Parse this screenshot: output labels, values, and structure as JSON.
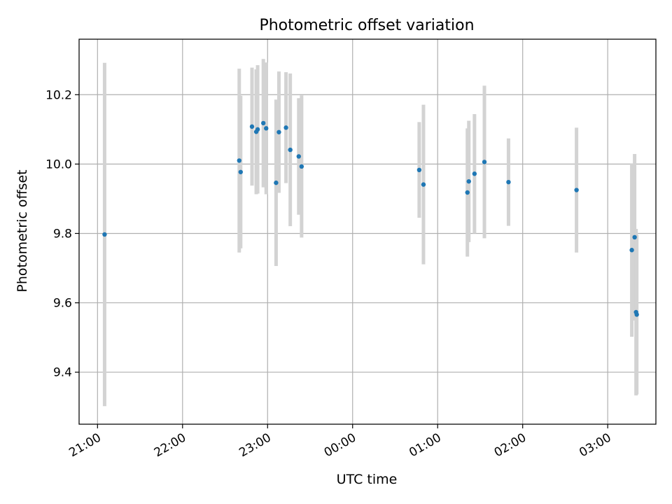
{
  "chart_data": {
    "type": "scatter",
    "title": "Photometric offset variation",
    "xlabel": "UTC time",
    "ylabel": "Photometric offset",
    "grid": true,
    "x_unit": "minutes",
    "x_ticks": [
      {
        "value": 0,
        "label": "21:00"
      },
      {
        "value": 60,
        "label": "22:00"
      },
      {
        "value": 120,
        "label": "23:00"
      },
      {
        "value": 180,
        "label": "00:00"
      },
      {
        "value": 240,
        "label": "01:00"
      },
      {
        "value": 300,
        "label": "02:00"
      },
      {
        "value": 360,
        "label": "03:00"
      }
    ],
    "y_ticks": [
      {
        "value": 9.4,
        "label": "9.4"
      },
      {
        "value": 9.6,
        "label": "9.6"
      },
      {
        "value": 9.8,
        "label": "9.8"
      },
      {
        "value": 10.0,
        "label": "10.0"
      },
      {
        "value": 10.2,
        "label": "10.2"
      }
    ],
    "xlim": [
      -13,
      394
    ],
    "ylim": [
      9.25,
      10.36
    ],
    "colors": {
      "marker": "#1f77b4",
      "errorbar": "#d3d3d3",
      "grid": "#b0b0b0"
    },
    "points": [
      {
        "x": 5,
        "y": 9.797,
        "err": 0.495
      },
      {
        "x": 100,
        "y": 10.01,
        "err": 0.265
      },
      {
        "x": 101,
        "y": 9.977,
        "err": 0.22
      },
      {
        "x": 109,
        "y": 10.108,
        "err": 0.17
      },
      {
        "x": 112,
        "y": 10.093,
        "err": 0.18
      },
      {
        "x": 113,
        "y": 10.1,
        "err": 0.185
      },
      {
        "x": 117,
        "y": 10.118,
        "err": 0.185
      },
      {
        "x": 119,
        "y": 10.103,
        "err": 0.19
      },
      {
        "x": 126,
        "y": 9.946,
        "err": 0.24
      },
      {
        "x": 128,
        "y": 10.092,
        "err": 0.175
      },
      {
        "x": 133,
        "y": 10.105,
        "err": 0.16
      },
      {
        "x": 136,
        "y": 10.041,
        "err": 0.22
      },
      {
        "x": 142,
        "y": 10.022,
        "err": 0.168
      },
      {
        "x": 144,
        "y": 9.993,
        "err": 0.205
      },
      {
        "x": 227,
        "y": 9.983,
        "err": 0.138
      },
      {
        "x": 230,
        "y": 9.941,
        "err": 0.23
      },
      {
        "x": 261,
        "y": 9.918,
        "err": 0.185
      },
      {
        "x": 262,
        "y": 9.95,
        "err": 0.175
      },
      {
        "x": 266,
        "y": 9.972,
        "err": 0.172
      },
      {
        "x": 273,
        "y": 10.006,
        "err": 0.22
      },
      {
        "x": 290,
        "y": 9.948,
        "err": 0.126
      },
      {
        "x": 338,
        "y": 9.925,
        "err": 0.18
      },
      {
        "x": 377,
        "y": 9.752,
        "err": 0.25
      },
      {
        "x": 379,
        "y": 9.789,
        "err": 0.24
      },
      {
        "x": 380,
        "y": 9.573,
        "err": 0.24
      },
      {
        "x": 380.5,
        "y": 9.566,
        "err": 0.23
      }
    ]
  }
}
